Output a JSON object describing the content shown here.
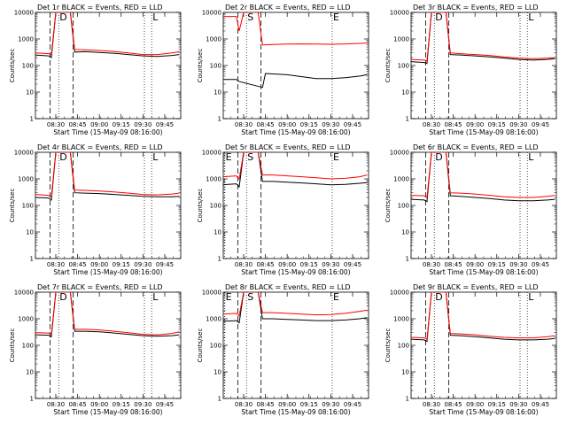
{
  "chart_data": [
    {
      "type": "line",
      "title": "Det 1r BLACK = Events, RED = LLD",
      "xlabel": "Start Time (15-May-09 08:16:00)",
      "ylabel": "Counts/sec",
      "log_y": true,
      "ylim": [
        1,
        10000
      ],
      "yticks": [
        "1",
        "10",
        "100",
        "1000",
        "10000"
      ],
      "xticks": [
        "08:30",
        "08:45",
        "09:00",
        "09:15",
        "09:30",
        "09:45"
      ],
      "xlim": [
        "08:16",
        "09:56"
      ],
      "markers": [
        {
          "label": "D",
          "time": "08:32"
        },
        {
          "label": "L",
          "time": "09:36"
        }
      ],
      "dashed_times": [
        "08:26",
        "08:42"
      ],
      "dotted_times": [
        "08:32",
        "09:31",
        "09:36"
      ],
      "series": [
        {
          "color": "#000000",
          "x": [
            "08:16",
            "08:25",
            "08:27",
            "08:30",
            "08:40",
            "08:43",
            "08:50",
            "09:00",
            "09:10",
            "09:20",
            "09:30",
            "09:40",
            "09:50",
            "09:55"
          ],
          "y": [
            250,
            230,
            200,
            10000,
            10000,
            320,
            330,
            310,
            290,
            260,
            230,
            220,
            240,
            260
          ]
        },
        {
          "color": "#ff0000",
          "x": [
            "08:16",
            "08:25",
            "08:27",
            "08:30",
            "08:40",
            "08:43",
            "08:50",
            "09:00",
            "09:10",
            "09:20",
            "09:30",
            "09:40",
            "09:50",
            "09:55"
          ],
          "y": [
            300,
            280,
            260,
            10000,
            10000,
            400,
            390,
            370,
            340,
            300,
            260,
            260,
            300,
            330
          ]
        }
      ]
    },
    {
      "type": "line",
      "title": "Det 2r BLACK = Events, RED = LLD",
      "xlabel": "Start Time (15-May-09 08:16:00)",
      "ylabel": "Counts/sec",
      "log_y": true,
      "ylim": [
        1,
        10000
      ],
      "yticks": [
        "1",
        "10",
        "100",
        "1000",
        "10000"
      ],
      "xticks": [
        "08:30",
        "08:45",
        "09:00",
        "09:15",
        "09:30",
        "09:45"
      ],
      "xlim": [
        "08:16",
        "09:56"
      ],
      "markers": [
        {
          "label": "S",
          "time": "08:32"
        },
        {
          "label": "E",
          "time": "09:31"
        }
      ],
      "dashed_times": [
        "08:26",
        "08:42"
      ],
      "dotted_times": [
        "08:32",
        "09:31"
      ],
      "series": [
        {
          "color": "#000000",
          "x": [
            "08:16",
            "08:25",
            "08:27",
            "08:43",
            "08:45",
            "09:00",
            "09:10",
            "09:20",
            "09:30",
            "09:40",
            "09:50",
            "09:55"
          ],
          "y": [
            30,
            30,
            25,
            15,
            50,
            45,
            38,
            32,
            32,
            35,
            40,
            45
          ]
        },
        {
          "color": "#ff0000",
          "x": [
            "08:16",
            "08:20",
            "08:25",
            "08:27",
            "08:30",
            "08:40",
            "08:43",
            "08:50",
            "09:00",
            "09:10",
            "09:20",
            "09:30",
            "09:40",
            "09:50",
            "09:55"
          ],
          "y": [
            7000,
            7000,
            7000,
            2000,
            10000,
            10000,
            600,
            620,
            640,
            650,
            640,
            630,
            650,
            680,
            700
          ]
        }
      ]
    },
    {
      "type": "line",
      "title": "Det 3r BLACK = Events, RED = LLD",
      "xlabel": "Start Time (15-May-09 08:16:00)",
      "ylabel": "Counts/sec",
      "log_y": true,
      "ylim": [
        1,
        10000
      ],
      "yticks": [
        "1",
        "10",
        "100",
        "1000",
        "10000"
      ],
      "xticks": [
        "08:30",
        "08:45",
        "09:00",
        "09:15",
        "09:30",
        "09:45"
      ],
      "xlim": [
        "08:16",
        "09:56"
      ],
      "markers": [
        {
          "label": "D",
          "time": "08:32"
        },
        {
          "label": "L",
          "time": "09:36"
        }
      ],
      "dashed_times": [
        "08:26",
        "08:42"
      ],
      "dotted_times": [
        "08:32",
        "09:31",
        "09:36"
      ],
      "series": [
        {
          "color": "#000000",
          "x": [
            "08:16",
            "08:25",
            "08:27",
            "08:30",
            "08:40",
            "08:43",
            "08:50",
            "09:00",
            "09:10",
            "09:20",
            "09:30",
            "09:40",
            "09:50",
            "09:55"
          ],
          "y": [
            140,
            130,
            120,
            10000,
            10000,
            260,
            250,
            230,
            210,
            190,
            170,
            160,
            170,
            180
          ]
        },
        {
          "color": "#ff0000",
          "x": [
            "08:16",
            "08:25",
            "08:27",
            "08:30",
            "08:40",
            "08:43",
            "08:50",
            "09:00",
            "09:10",
            "09:20",
            "09:30",
            "09:40",
            "09:50",
            "09:55"
          ],
          "y": [
            170,
            160,
            150,
            10000,
            10000,
            300,
            280,
            260,
            240,
            210,
            190,
            180,
            190,
            200
          ]
        }
      ]
    },
    {
      "type": "line",
      "title": "Det 4r BLACK = Events, RED = LLD",
      "xlabel": "Start Time (15-May-09 08:16:00)",
      "ylabel": "Counts/sec",
      "log_y": true,
      "ylim": [
        1,
        10000
      ],
      "yticks": [
        "1",
        "10",
        "100",
        "1000",
        "10000"
      ],
      "xticks": [
        "08:30",
        "08:45",
        "09:00",
        "09:15",
        "09:30",
        "09:45"
      ],
      "xlim": [
        "08:16",
        "09:56"
      ],
      "markers": [
        {
          "label": "D",
          "time": "08:32"
        },
        {
          "label": "L",
          "time": "09:36"
        }
      ],
      "dashed_times": [
        "08:26",
        "08:42"
      ],
      "dotted_times": [
        "08:32",
        "09:31",
        "09:36"
      ],
      "series": [
        {
          "color": "#000000",
          "x": [
            "08:16",
            "08:25",
            "08:27",
            "08:30",
            "08:40",
            "08:43",
            "08:50",
            "09:00",
            "09:10",
            "09:20",
            "09:30",
            "09:40",
            "09:50",
            "09:55"
          ],
          "y": [
            200,
            190,
            160,
            10000,
            10000,
            300,
            290,
            280,
            260,
            240,
            220,
            210,
            210,
            220
          ]
        },
        {
          "color": "#ff0000",
          "x": [
            "08:16",
            "08:25",
            "08:27",
            "08:30",
            "08:40",
            "08:43",
            "08:50",
            "09:00",
            "09:10",
            "09:20",
            "09:30",
            "09:40",
            "09:50",
            "09:55"
          ],
          "y": [
            260,
            240,
            210,
            10000,
            10000,
            380,
            370,
            350,
            320,
            290,
            260,
            250,
            270,
            290
          ]
        }
      ]
    },
    {
      "type": "line",
      "title": "Det 5r BLACK = Events, RED = LLD",
      "xlabel": "Start Time (15-May-09 08:16:00)",
      "ylabel": "Counts/sec",
      "log_y": true,
      "ylim": [
        1,
        10000
      ],
      "yticks": [
        "1",
        "10",
        "100",
        "1000",
        "10000"
      ],
      "xticks": [
        "08:30",
        "08:45",
        "09:00",
        "09:15",
        "09:30",
        "09:45"
      ],
      "xlim": [
        "08:16",
        "09:56"
      ],
      "markers": [
        {
          "label": "E",
          "time": "08:17"
        },
        {
          "label": "S",
          "time": "08:32"
        },
        {
          "label": "E",
          "time": "09:31"
        }
      ],
      "dashed_times": [
        "08:26",
        "08:42"
      ],
      "dotted_times": [
        "08:17",
        "08:32",
        "09:31"
      ],
      "series": [
        {
          "color": "#000000",
          "x": [
            "08:16",
            "08:25",
            "08:27",
            "08:30",
            "08:40",
            "08:43",
            "08:50",
            "09:00",
            "09:10",
            "09:20",
            "09:30",
            "09:40",
            "09:50",
            "09:55"
          ],
          "y": [
            600,
            650,
            500,
            10000,
            10000,
            800,
            800,
            750,
            700,
            650,
            600,
            620,
            680,
            720
          ]
        },
        {
          "color": "#ff0000",
          "x": [
            "08:16",
            "08:25",
            "08:27",
            "08:30",
            "08:40",
            "08:43",
            "08:50",
            "09:00",
            "09:10",
            "09:20",
            "09:30",
            "09:40",
            "09:50",
            "09:55"
          ],
          "y": [
            1200,
            1300,
            1000,
            10000,
            10000,
            1400,
            1400,
            1300,
            1200,
            1100,
            1000,
            1050,
            1200,
            1400
          ]
        }
      ]
    },
    {
      "type": "line",
      "title": "Det 6r BLACK = Events, RED = LLD",
      "xlabel": "Start Time (15-May-09 08:16:00)",
      "ylabel": "Counts/sec",
      "log_y": true,
      "ylim": [
        1,
        10000
      ],
      "yticks": [
        "1",
        "10",
        "100",
        "1000",
        "10000"
      ],
      "xticks": [
        "08:30",
        "08:45",
        "09:00",
        "09:15",
        "09:30",
        "09:45"
      ],
      "xlim": [
        "08:16",
        "09:56"
      ],
      "markers": [
        {
          "label": "D",
          "time": "08:32"
        },
        {
          "label": "L",
          "time": "09:36"
        }
      ],
      "dashed_times": [
        "08:26",
        "08:42"
      ],
      "dotted_times": [
        "08:32",
        "09:31",
        "09:36"
      ],
      "series": [
        {
          "color": "#000000",
          "x": [
            "08:16",
            "08:25",
            "08:27",
            "08:30",
            "08:40",
            "08:43",
            "08:50",
            "09:00",
            "09:10",
            "09:20",
            "09:30",
            "09:40",
            "09:50",
            "09:55"
          ],
          "y": [
            170,
            160,
            140,
            10000,
            10000,
            230,
            220,
            200,
            180,
            160,
            150,
            150,
            160,
            170
          ]
        },
        {
          "color": "#ff0000",
          "x": [
            "08:16",
            "08:25",
            "08:27",
            "08:30",
            "08:40",
            "08:43",
            "08:50",
            "09:00",
            "09:10",
            "09:20",
            "09:30",
            "09:40",
            "09:50",
            "09:55"
          ],
          "y": [
            240,
            230,
            200,
            10000,
            10000,
            300,
            290,
            270,
            240,
            210,
            200,
            200,
            220,
            240
          ]
        }
      ]
    },
    {
      "type": "line",
      "title": "Det 7r BLACK = Events, RED = LLD",
      "xlabel": "Start Time (15-May-09 08:16:00)",
      "ylabel": "Counts/sec",
      "log_y": true,
      "ylim": [
        1,
        10000
      ],
      "yticks": [
        "1",
        "10",
        "100",
        "1000",
        "10000"
      ],
      "xticks": [
        "08:30",
        "08:45",
        "09:00",
        "09:15",
        "09:30",
        "09:45"
      ],
      "xlim": [
        "08:16",
        "09:56"
      ],
      "markers": [
        {
          "label": "D",
          "time": "08:32"
        },
        {
          "label": "L",
          "time": "09:36"
        }
      ],
      "dashed_times": [
        "08:26",
        "08:42"
      ],
      "dotted_times": [
        "08:32",
        "09:31",
        "09:36"
      ],
      "series": [
        {
          "color": "#000000",
          "x": [
            "08:16",
            "08:25",
            "08:27",
            "08:30",
            "08:40",
            "08:43",
            "08:50",
            "09:00",
            "09:10",
            "09:20",
            "09:30",
            "09:40",
            "09:50",
            "09:55"
          ],
          "y": [
            250,
            240,
            210,
            10000,
            10000,
            340,
            340,
            320,
            290,
            260,
            230,
            220,
            230,
            250
          ]
        },
        {
          "color": "#ff0000",
          "x": [
            "08:16",
            "08:25",
            "08:27",
            "08:30",
            "08:40",
            "08:43",
            "08:50",
            "09:00",
            "09:10",
            "09:20",
            "09:30",
            "09:40",
            "09:50",
            "09:55"
          ],
          "y": [
            300,
            290,
            260,
            10000,
            10000,
            400,
            400,
            380,
            340,
            300,
            260,
            250,
            280,
            320
          ]
        }
      ]
    },
    {
      "type": "line",
      "title": "Det 8r BLACK = Events, RED = LLD",
      "xlabel": "Start Time (15-May-09 08:16:00)",
      "ylabel": "Counts/sec",
      "log_y": true,
      "ylim": [
        1,
        10000
      ],
      "yticks": [
        "1",
        "10",
        "100",
        "1000",
        "10000"
      ],
      "xticks": [
        "08:30",
        "08:45",
        "09:00",
        "09:15",
        "09:30",
        "09:45"
      ],
      "xlim": [
        "08:16",
        "09:56"
      ],
      "markers": [
        {
          "label": "E",
          "time": "08:17"
        },
        {
          "label": "S",
          "time": "08:32"
        },
        {
          "label": "E",
          "time": "09:31"
        }
      ],
      "dashed_times": [
        "08:26",
        "08:42"
      ],
      "dotted_times": [
        "08:17",
        "08:32",
        "09:31"
      ],
      "series": [
        {
          "color": "#000000",
          "x": [
            "08:16",
            "08:25",
            "08:27",
            "08:30",
            "08:40",
            "08:43",
            "08:50",
            "09:00",
            "09:10",
            "09:20",
            "09:30",
            "09:40",
            "09:50",
            "09:55"
          ],
          "y": [
            800,
            850,
            700,
            10000,
            10000,
            1000,
            1000,
            950,
            900,
            850,
            850,
            900,
            1000,
            1100
          ]
        },
        {
          "color": "#ff0000",
          "x": [
            "08:16",
            "08:25",
            "08:27",
            "08:30",
            "08:40",
            "08:43",
            "08:50",
            "09:00",
            "09:10",
            "09:20",
            "09:30",
            "09:40",
            "09:50",
            "09:55"
          ],
          "y": [
            1500,
            1600,
            1300,
            10000,
            10000,
            1700,
            1700,
            1600,
            1500,
            1400,
            1450,
            1600,
            1900,
            2100
          ]
        }
      ]
    },
    {
      "type": "line",
      "title": "Det 9r BLACK = Events, RED = LLD",
      "xlabel": "Start Time (15-May-09 08:16:00)",
      "ylabel": "Counts/sec",
      "log_y": true,
      "ylim": [
        1,
        10000
      ],
      "yticks": [
        "1",
        "10",
        "100",
        "1000",
        "10000"
      ],
      "xticks": [
        "08:30",
        "08:45",
        "09:00",
        "09:15",
        "09:30",
        "09:45"
      ],
      "xlim": [
        "08:16",
        "09:56"
      ],
      "markers": [
        {
          "label": "D",
          "time": "08:32"
        },
        {
          "label": "L",
          "time": "09:36"
        }
      ],
      "dashed_times": [
        "08:26",
        "08:42"
      ],
      "dotted_times": [
        "08:32",
        "09:31",
        "09:36"
      ],
      "series": [
        {
          "color": "#000000",
          "x": [
            "08:16",
            "08:25",
            "08:27",
            "08:30",
            "08:40",
            "08:43",
            "08:50",
            "09:00",
            "09:10",
            "09:20",
            "09:30",
            "09:40",
            "09:50",
            "09:55"
          ],
          "y": [
            170,
            160,
            140,
            10000,
            10000,
            240,
            230,
            210,
            190,
            170,
            160,
            160,
            170,
            180
          ]
        },
        {
          "color": "#ff0000",
          "x": [
            "08:16",
            "08:25",
            "08:27",
            "08:30",
            "08:40",
            "08:43",
            "08:50",
            "09:00",
            "09:10",
            "09:20",
            "09:30",
            "09:40",
            "09:50",
            "09:55"
          ],
          "y": [
            200,
            190,
            170,
            10000,
            10000,
            280,
            270,
            250,
            220,
            200,
            190,
            190,
            210,
            230
          ]
        }
      ]
    }
  ]
}
